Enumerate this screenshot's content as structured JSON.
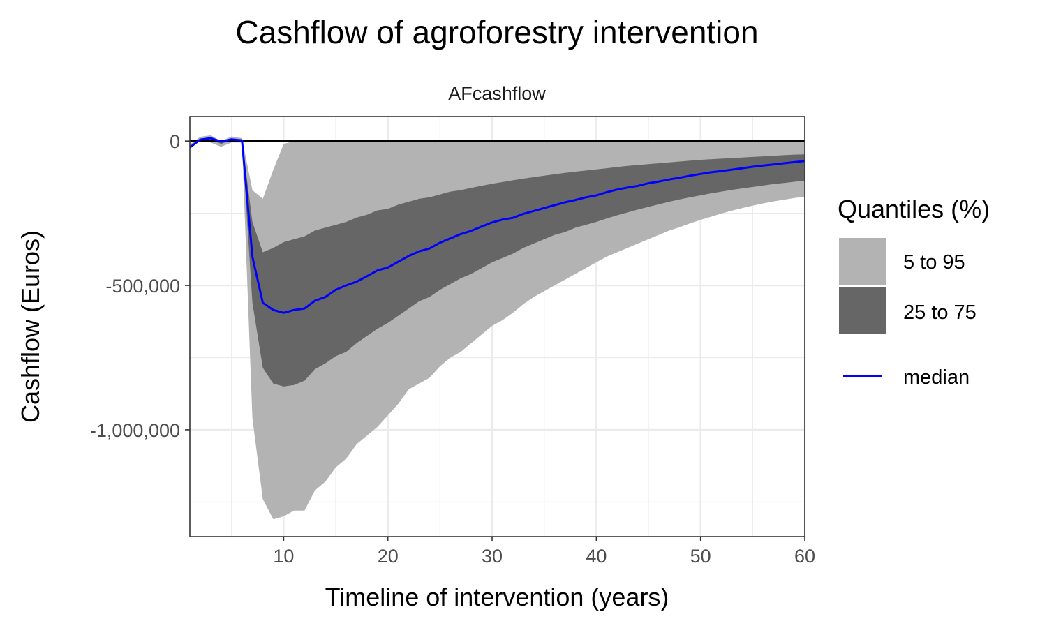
{
  "chart_data": {
    "type": "area",
    "title": "Cashflow of agroforestry intervention",
    "facet_label": "AFcashflow",
    "xlabel": "Timeline of intervention (years)",
    "ylabel": "Cashflow (Euros)",
    "xlim": [
      1,
      60
    ],
    "ylim": [
      -1370000,
      85000
    ],
    "xticks": [
      10,
      20,
      30,
      40,
      50,
      60
    ],
    "xtick_labels": [
      "10",
      "20",
      "30",
      "40",
      "50",
      "60"
    ],
    "yticks": [
      0,
      -500000,
      -1000000
    ],
    "ytick_labels": [
      "0",
      "-500,000",
      "-1,000,000"
    ],
    "grid": true,
    "zero_line": true,
    "legend": {
      "title": "Quantiles (%)",
      "placement": "right",
      "items": [
        {
          "label": "5 to 95",
          "color": "#b3b3b3"
        },
        {
          "label": "25 to 75",
          "color": "#666666"
        },
        {
          "label": "median",
          "color": "#0000ff"
        }
      ]
    },
    "x": [
      1,
      2,
      3,
      4,
      5,
      6,
      7,
      8,
      9,
      10,
      11,
      12,
      13,
      14,
      15,
      16,
      17,
      18,
      19,
      20,
      21,
      22,
      23,
      24,
      25,
      26,
      27,
      28,
      29,
      30,
      31,
      32,
      33,
      34,
      35,
      36,
      37,
      38,
      39,
      40,
      41,
      42,
      43,
      44,
      45,
      46,
      47,
      48,
      49,
      50,
      51,
      52,
      53,
      54,
      55,
      56,
      57,
      58,
      59,
      60
    ],
    "series": [
      {
        "name": "5 to 95",
        "color": "#b3b3b3",
        "upper": [
          -12000,
          15000,
          20000,
          0,
          16000,
          10000,
          -170000,
          -200000,
          -100000,
          -10000,
          0,
          0,
          0,
          0,
          0,
          0,
          0,
          0,
          0,
          0,
          0,
          0,
          0,
          0,
          0,
          0,
          0,
          0,
          0,
          0,
          0,
          0,
          0,
          0,
          0,
          0,
          0,
          0,
          0,
          0,
          0,
          0,
          0,
          0,
          0,
          0,
          0,
          0,
          0,
          0,
          0,
          0,
          0,
          0,
          0,
          0,
          0,
          0,
          0,
          0
        ],
        "lower": [
          -25000,
          0,
          -5000,
          -20000,
          -5000,
          -5000,
          -960000,
          -1240000,
          -1310000,
          -1300000,
          -1280000,
          -1280000,
          -1210000,
          -1180000,
          -1130000,
          -1100000,
          -1050000,
          -1020000,
          -990000,
          -950000,
          -910000,
          -860000,
          -840000,
          -820000,
          -780000,
          -750000,
          -730000,
          -700000,
          -670000,
          -640000,
          -620000,
          -595000,
          -565000,
          -540000,
          -520000,
          -500000,
          -480000,
          -460000,
          -440000,
          -420000,
          -400000,
          -385000,
          -370000,
          -355000,
          -340000,
          -325000,
          -310000,
          -298000,
          -285000,
          -273000,
          -262000,
          -251000,
          -241000,
          -232000,
          -224000,
          -216000,
          -209000,
          -203000,
          -197000,
          -193000
        ]
      },
      {
        "name": "25 to 75",
        "color": "#666666",
        "upper": [
          -18000,
          8000,
          12000,
          -5000,
          8000,
          3000,
          -280000,
          -385000,
          -370000,
          -350000,
          -340000,
          -330000,
          -310000,
          -300000,
          -290000,
          -280000,
          -265000,
          -255000,
          -240000,
          -235000,
          -220000,
          -210000,
          -200000,
          -195000,
          -185000,
          -175000,
          -170000,
          -162000,
          -155000,
          -148000,
          -142000,
          -136000,
          -130000,
          -125000,
          -120000,
          -115000,
          -110000,
          -106000,
          -102000,
          -98000,
          -94000,
          -90000,
          -86000,
          -83000,
          -80000,
          -77000,
          -74000,
          -71000,
          -68000,
          -65000,
          -63000,
          -61000,
          -59000,
          -57000,
          -55000,
          -53000,
          -51000,
          -49000,
          -47000,
          -46000
        ]
      },
      {
        "name": "25 to 75",
        "lower": [
          -20000,
          4000,
          6000,
          -10000,
          4000,
          0,
          -560000,
          -785000,
          -840000,
          -850000,
          -845000,
          -830000,
          -790000,
          -770000,
          -745000,
          -730000,
          -700000,
          -675000,
          -650000,
          -630000,
          -605000,
          -580000,
          -555000,
          -540000,
          -515000,
          -495000,
          -475000,
          -460000,
          -440000,
          -420000,
          -405000,
          -390000,
          -370000,
          -355000,
          -340000,
          -325000,
          -315000,
          -300000,
          -290000,
          -280000,
          -268000,
          -257000,
          -247000,
          -237000,
          -228000,
          -219000,
          -210000,
          -202000,
          -195000,
          -188000,
          -181000,
          -175000,
          -169000,
          -164000,
          -159000,
          -154000,
          -149000,
          -145000,
          -141000,
          -137000
        ]
      },
      {
        "name": "median",
        "color": "#0000ff",
        "values": [
          -22000,
          5000,
          10000,
          -2000,
          6000,
          2000,
          -400000,
          -560000,
          -585000,
          -595000,
          -585000,
          -580000,
          -553000,
          -540000,
          -515000,
          -500000,
          -487000,
          -468000,
          -448000,
          -438000,
          -418000,
          -398000,
          -382000,
          -372000,
          -352000,
          -337000,
          -322000,
          -311000,
          -296000,
          -282000,
          -272000,
          -266000,
          -252000,
          -242000,
          -232000,
          -222000,
          -212000,
          -204000,
          -195000,
          -188000,
          -177000,
          -168000,
          -161000,
          -155000,
          -146000,
          -140000,
          -133000,
          -127000,
          -120000,
          -114000,
          -108000,
          -104000,
          -99000,
          -94000,
          -89000,
          -85000,
          -81000,
          -77000,
          -73000,
          -69000
        ]
      }
    ]
  }
}
